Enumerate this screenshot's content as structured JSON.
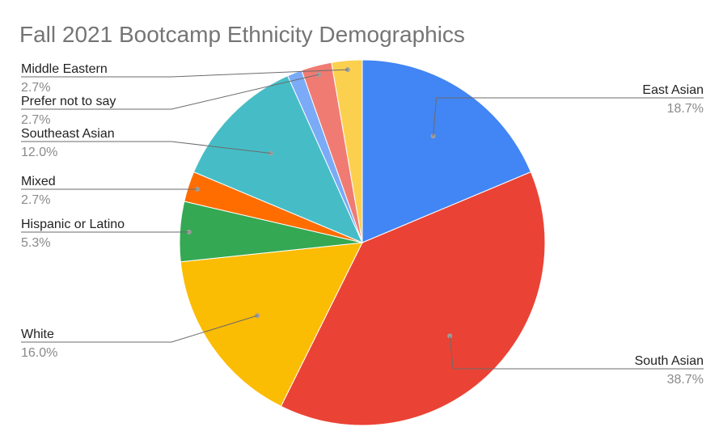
{
  "chart_data": {
    "type": "pie",
    "title": "Fall 2021 Bootcamp Ethnicity Demographics",
    "slices": [
      {
        "label": "East Asian",
        "value": 18.7,
        "display": "18.7%",
        "color": "#4285F4",
        "side": "right"
      },
      {
        "label": "South Asian",
        "value": 38.7,
        "display": "38.7%",
        "color": "#EA4335",
        "side": "right"
      },
      {
        "label": "White",
        "value": 16.0,
        "display": "16.0%",
        "color": "#FBBC04",
        "side": "left"
      },
      {
        "label": "Hispanic or Latino",
        "value": 5.3,
        "display": "5.3%",
        "color": "#34A853",
        "side": "left"
      },
      {
        "label": "Mixed",
        "value": 2.7,
        "display": "2.7%",
        "color": "#FF6D01",
        "side": "left"
      },
      {
        "label": "Southeast Asian",
        "value": 12.0,
        "display": "12.0%",
        "color": "#46BDC6",
        "side": "left"
      },
      {
        "label": "",
        "value": 1.3,
        "display": "",
        "color": "#7BAAF7",
        "side": "none"
      },
      {
        "label": "Prefer not to say",
        "value": 2.7,
        "display": "2.7%",
        "color": "#F07B72",
        "side": "left"
      },
      {
        "label": "Middle Eastern",
        "value": 2.7,
        "display": "2.7%",
        "color": "#FCD04F",
        "side": "left"
      }
    ]
  }
}
